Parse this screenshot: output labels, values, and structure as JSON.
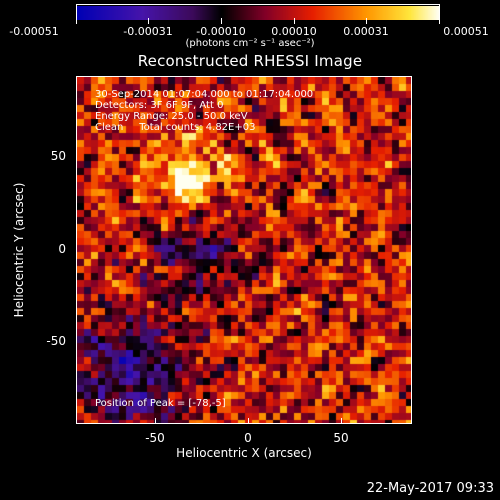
{
  "colorbar": {
    "tick_labels": [
      "-0.00051",
      "-0.00031",
      "-0.00010",
      "0.00010",
      "0.00031",
      "0.00051"
    ],
    "units": "(photons cm⁻² s⁻¹ asec⁻²)"
  },
  "title": "Reconstructed RHESSI Image",
  "info": {
    "line1": "30-Sep-2014 01:07:04.000 to 01:17:04.000",
    "line2": "Detectors: 3F 6F 9F, Att 0",
    "line3": "Energy Range: 25.0 - 50.0 keV",
    "line4": "Clean     Total counts: 4.82E+03",
    "peak": "Position of Peak = [-78,-5]"
  },
  "axes": {
    "xlabel": "Heliocentric X (arcsec)",
    "ylabel": "Heliocentric Y (arcsec)",
    "x_ticks": [
      "-50",
      "0",
      "50"
    ],
    "y_ticks": [
      "50",
      "0",
      "-50"
    ]
  },
  "footer": "22-May-2017 09:33"
}
